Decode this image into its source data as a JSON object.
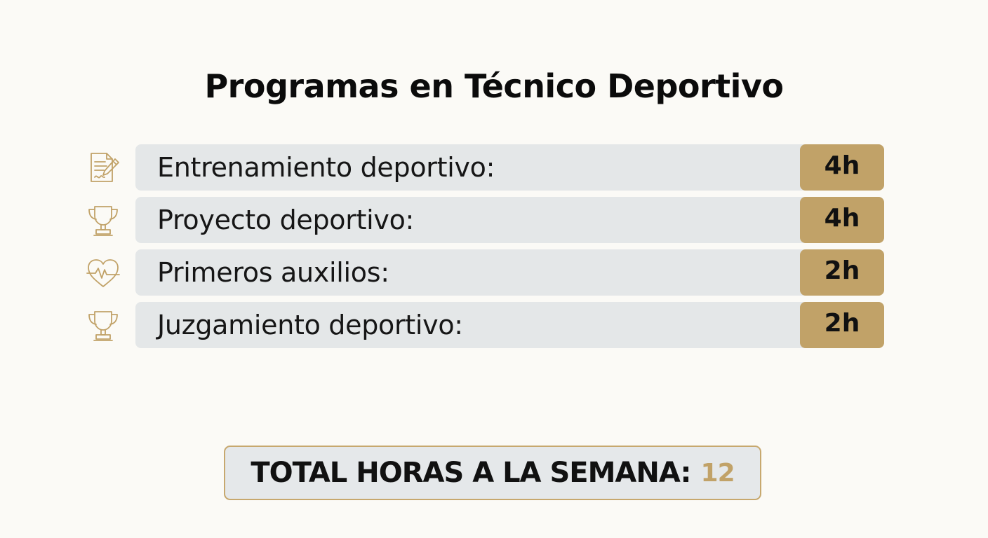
{
  "title": "Programas en Técnico Deportivo",
  "programs": [
    {
      "icon": "document-signature-icon",
      "label": "Entrenamiento deportivo:",
      "hours": "4h"
    },
    {
      "icon": "trophy-icon",
      "label": "Proyecto deportivo:",
      "hours": "4h"
    },
    {
      "icon": "heartbeat-icon",
      "label": "Primeros auxilios:",
      "hours": "2h"
    },
    {
      "icon": "trophy-icon",
      "label": "Juzgamiento deportivo:",
      "hours": "2h"
    }
  ],
  "total": {
    "label": "TOTAL HORAS A LA SEMANA:",
    "value": "12"
  },
  "colors": {
    "accent": "#c1a268",
    "bar": "#e4e7e8",
    "background": "#fbfaf6"
  }
}
